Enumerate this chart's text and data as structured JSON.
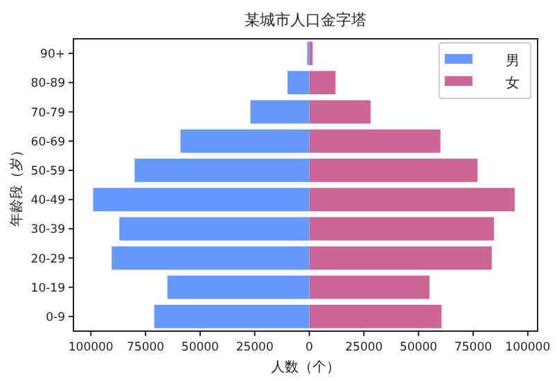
{
  "chart_data": {
    "type": "bar",
    "orientation": "horizontal",
    "title": "某城市人口金字塔",
    "xlabel": "人数（个）",
    "ylabel": "年龄段（岁）",
    "categories": [
      "90+",
      "80-89",
      "70-79",
      "60-69",
      "50-59",
      "40-49",
      "30-39",
      "20-29",
      "10-19",
      "0-9"
    ],
    "series": [
      {
        "name": "男",
        "color": "#6699ff",
        "values": [
          -1000,
          -10000,
          -27000,
          -59000,
          -80000,
          -99000,
          -87000,
          -90500,
          -65000,
          -71000
        ]
      },
      {
        "name": "女",
        "color": "#cc6699",
        "values": [
          1500,
          12000,
          28000,
          60000,
          77000,
          94000,
          84500,
          83500,
          55000,
          60500
        ]
      }
    ],
    "xlim": [
      -108000,
      104500
    ],
    "xticks": [
      {
        "value": -100000,
        "label": "100000"
      },
      {
        "value": -75000,
        "label": "75000"
      },
      {
        "value": -50000,
        "label": "50000"
      },
      {
        "value": -25000,
        "label": "25000"
      },
      0,
      25000,
      50000,
      75000,
      100000
    ],
    "legend": "top right",
    "grid": false,
    "stacked": true
  }
}
